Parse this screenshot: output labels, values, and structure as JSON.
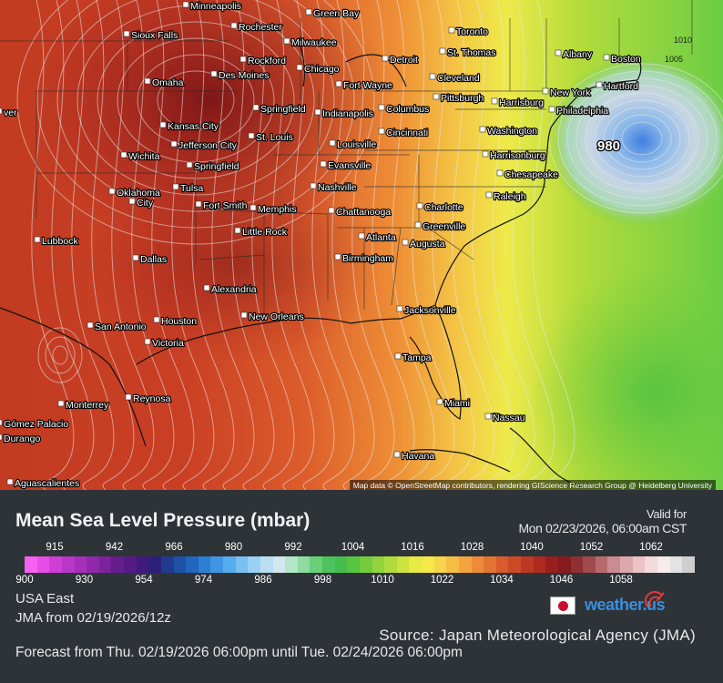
{
  "map": {
    "attribution": "Map data © OpenStreetMap contributors, rendering GIScience Research Group @ Heidelberg University",
    "low_center_label": "980",
    "isobar_labels": [
      "1010",
      "1005"
    ],
    "cities": [
      {
        "name": "Minneapolis"
      },
      {
        "name": "Green Bay"
      },
      {
        "name": "Sioux Falls"
      },
      {
        "name": "Rochester"
      },
      {
        "name": "Milwaukee"
      },
      {
        "name": "Rockford"
      },
      {
        "name": "Chicago"
      },
      {
        "name": "Des Moines"
      },
      {
        "name": "Omaha"
      },
      {
        "name": "Detroit"
      },
      {
        "name": "Toronto"
      },
      {
        "name": "St. Thomas"
      },
      {
        "name": "Cleveland"
      },
      {
        "name": "Fort Wayne"
      },
      {
        "name": "Albany"
      },
      {
        "name": "Boston"
      },
      {
        "name": "Hartford"
      },
      {
        "name": "New York"
      },
      {
        "name": "Philadelphia"
      },
      {
        "name": "Harrisburg"
      },
      {
        "name": "Pittsburgh"
      },
      {
        "name": "Columbus"
      },
      {
        "name": "Indianapolis"
      },
      {
        "name": "Springfield"
      },
      {
        "name": "Kansas City"
      },
      {
        "name": "Jefferson City"
      },
      {
        "name": "St. Louis"
      },
      {
        "name": "Cincinnati"
      },
      {
        "name": "Washington"
      },
      {
        "name": "Harrisonburg"
      },
      {
        "name": "Chesapeake"
      },
      {
        "name": "Louisville"
      },
      {
        "name": "Evansville"
      },
      {
        "name": "Wichita"
      },
      {
        "name": "Springfield"
      },
      {
        "name": "Tulsa"
      },
      {
        "name": "Oklahoma"
      },
      {
        "name": "City"
      },
      {
        "name": "Fort Smith"
      },
      {
        "name": "Memphis"
      },
      {
        "name": "Nashville"
      },
      {
        "name": "Chattanooga"
      },
      {
        "name": "Raleigh"
      },
      {
        "name": "Charlotte"
      },
      {
        "name": "Greenville"
      },
      {
        "name": "Atlanta"
      },
      {
        "name": "Augusta"
      },
      {
        "name": "Little Rock"
      },
      {
        "name": "Birmingham"
      },
      {
        "name": "Lubbock"
      },
      {
        "name": "Dallas"
      },
      {
        "name": "Alexandria"
      },
      {
        "name": "Jacksonville"
      },
      {
        "name": "New Orleans"
      },
      {
        "name": "San Antonio"
      },
      {
        "name": "Houston"
      },
      {
        "name": "Victoria"
      },
      {
        "name": "Tampa"
      },
      {
        "name": "Miami"
      },
      {
        "name": "Monterrey"
      },
      {
        "name": "Reynosa"
      },
      {
        "name": "Nassau"
      },
      {
        "name": "Havana"
      },
      {
        "name": "Gómez Palacio"
      },
      {
        "name": "Durango"
      },
      {
        "name": "Aguascalientes"
      },
      {
        "name": "ver"
      }
    ]
  },
  "legend": {
    "title": "Mean Sea Level Pressure (mbar)",
    "valid_label": "Valid for",
    "valid_value": "Mon 02/23/2026, 06:00am CST",
    "top_ticks": [
      "915",
      "942",
      "966",
      "980",
      "992",
      "1004",
      "1016",
      "1028",
      "1040",
      "1052",
      "1062"
    ],
    "bottom_ticks": [
      "900",
      "930",
      "954",
      "974",
      "986",
      "998",
      "1010",
      "1022",
      "1034",
      "1046",
      "1058"
    ],
    "colors": [
      "#f562f0",
      "#e64ee6",
      "#cf3fd7",
      "#b937c8",
      "#a530b9",
      "#8f29aa",
      "#7a239c",
      "#661d8e",
      "#541a86",
      "#3f1a7c",
      "#2b1f7a",
      "#1f3b8f",
      "#1f52a6",
      "#2167bd",
      "#2d7fd3",
      "#3f96e3",
      "#57aced",
      "#79c1f2",
      "#9ad1f4",
      "#b9def2",
      "#d2e8ee",
      "#b4e6c7",
      "#8fdba0",
      "#6acf79",
      "#4ec25d",
      "#46bd4a",
      "#58c440",
      "#74cc3c",
      "#92d43b",
      "#b0db3c",
      "#cee23e",
      "#e6ea42",
      "#f4e84a",
      "#f7d44a",
      "#f6bd45",
      "#f2a53f",
      "#ec8c38",
      "#e47432",
      "#d95d2c",
      "#cc4a27",
      "#be3923",
      "#ad2a21",
      "#9a1e1f",
      "#861a1d",
      "#8e3033",
      "#a04a4e",
      "#b76a6e",
      "#cb8b90",
      "#dca8ad",
      "#eac3c7",
      "#f3dadc",
      "#f7ebec",
      "#e3e3e3",
      "#cfcfcf"
    ],
    "region": "USA East",
    "model": "JMA from 02/19/2026/12z",
    "source": "Source: Japan Meteorological Agency (JMA)",
    "forecast": "Forecast from Thu. 02/19/2026 06:00pm until Tue. 02/24/2026 06:00pm",
    "brand": "weather.us"
  }
}
